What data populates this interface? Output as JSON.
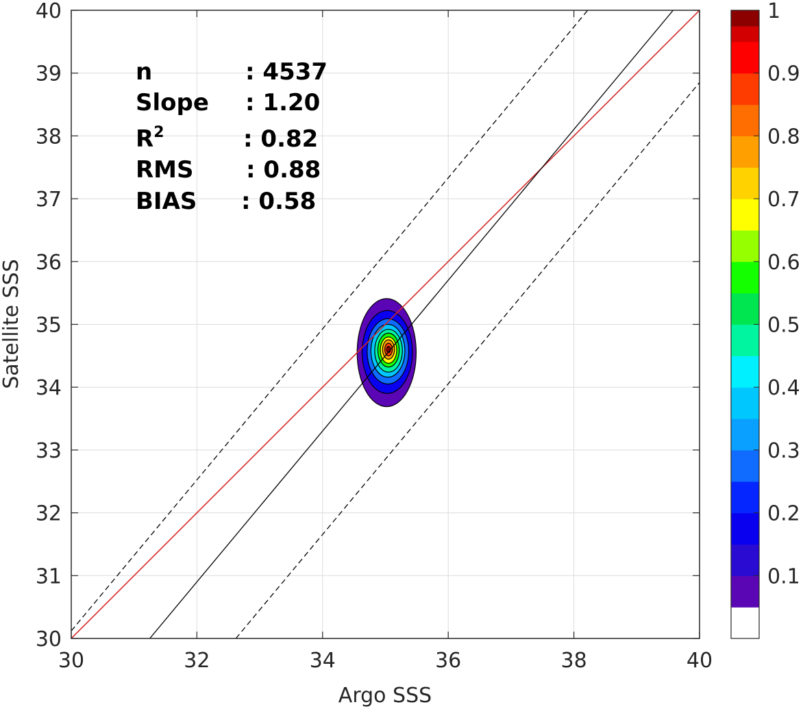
{
  "chart_data": {
    "type": "heatmap",
    "subtype": "density contour scatter comparison",
    "xlabel": "Argo SSS",
    "ylabel": "Satellite SSS",
    "xlim": [
      30,
      40
    ],
    "ylim": [
      30,
      40
    ],
    "x_ticks": [
      "30",
      "32",
      "34",
      "36",
      "38",
      "40"
    ],
    "y_ticks": [
      "30",
      "31",
      "32",
      "33",
      "34",
      "35",
      "36",
      "37",
      "38",
      "39",
      "40"
    ],
    "grid": true,
    "stats": [
      {
        "label": "n",
        "sep": ": ",
        "value": "4537"
      },
      {
        "label": "Slope",
        "sep": ": ",
        "value": "1.20"
      },
      {
        "label": "R",
        "sup": "2",
        "sep": ": ",
        "value": "0.82"
      },
      {
        "label": "RMS",
        "sep": ": ",
        "value": "0.88"
      },
      {
        "label": "BIAS",
        "sep": ": ",
        "value": "0.58"
      }
    ],
    "lines": [
      {
        "role": "one-to-one",
        "color": "#d62728",
        "style": "solid",
        "points": [
          [
            30,
            30
          ],
          [
            40,
            40
          ]
        ]
      },
      {
        "role": "regression",
        "color": "#000000",
        "style": "solid",
        "points": [
          [
            31.25,
            30
          ],
          [
            39.58,
            40
          ]
        ]
      },
      {
        "role": "upper-bound",
        "color": "#000000",
        "style": "dashed",
        "points": [
          [
            30,
            30.12
          ],
          [
            38.22,
            40
          ]
        ]
      },
      {
        "role": "lower-bound",
        "color": "#000000",
        "style": "dashed",
        "points": [
          [
            32.62,
            30
          ],
          [
            40,
            38.85
          ]
        ]
      }
    ],
    "density_peak": {
      "x": 35.05,
      "y": 34.6,
      "value": 1.0
    },
    "contours": [
      {
        "level": 0.05,
        "cx": 35.02,
        "cy": 34.55,
        "rx": 0.47,
        "ry": 0.86
      },
      {
        "level": 0.15,
        "cx": 35.03,
        "cy": 34.56,
        "rx": 0.4,
        "ry": 0.66
      },
      {
        "level": 0.25,
        "cx": 35.04,
        "cy": 34.57,
        "rx": 0.33,
        "ry": 0.52
      },
      {
        "level": 0.35,
        "cx": 35.04,
        "cy": 34.58,
        "rx": 0.27,
        "ry": 0.42
      },
      {
        "level": 0.45,
        "cx": 35.05,
        "cy": 34.58,
        "rx": 0.22,
        "ry": 0.34
      },
      {
        "level": 0.55,
        "cx": 35.05,
        "cy": 34.59,
        "rx": 0.17,
        "ry": 0.27
      },
      {
        "level": 0.65,
        "cx": 35.05,
        "cy": 34.59,
        "rx": 0.13,
        "ry": 0.21
      },
      {
        "level": 0.75,
        "cx": 35.05,
        "cy": 34.6,
        "rx": 0.095,
        "ry": 0.155
      },
      {
        "level": 0.85,
        "cx": 35.05,
        "cy": 34.6,
        "rx": 0.06,
        "ry": 0.1
      },
      {
        "level": 0.95,
        "cx": 35.05,
        "cy": 34.6,
        "rx": 0.03,
        "ry": 0.05
      }
    ],
    "colorbar": {
      "range": [
        0,
        1
      ],
      "tick_values": [
        0.1,
        0.2,
        0.3,
        0.4,
        0.5,
        0.6,
        0.7,
        0.8,
        0.9,
        1.0
      ],
      "tick_labels": [
        "0.1",
        "0.2",
        "0.3",
        "0.4",
        "0.5",
        "0.6",
        "0.7",
        "0.8",
        "0.9",
        "1"
      ],
      "bands": [
        {
          "from": 0.0,
          "to": 0.05,
          "color": "#ffffff"
        },
        {
          "from": 0.05,
          "to": 0.1,
          "color": "#5a06b4"
        },
        {
          "from": 0.1,
          "to": 0.15,
          "color": "#2a0bd2"
        },
        {
          "from": 0.15,
          "to": 0.2,
          "color": "#0a00f0"
        },
        {
          "from": 0.2,
          "to": 0.25,
          "color": "#0526ff"
        },
        {
          "from": 0.25,
          "to": 0.3,
          "color": "#0f6cff"
        },
        {
          "from": 0.3,
          "to": 0.35,
          "color": "#0aa0ff"
        },
        {
          "from": 0.35,
          "to": 0.4,
          "color": "#00c8ff"
        },
        {
          "from": 0.4,
          "to": 0.45,
          "color": "#00f0ff"
        },
        {
          "from": 0.45,
          "to": 0.5,
          "color": "#00f5a0"
        },
        {
          "from": 0.5,
          "to": 0.55,
          "color": "#00e650"
        },
        {
          "from": 0.55,
          "to": 0.6,
          "color": "#14ff00"
        },
        {
          "from": 0.6,
          "to": 0.65,
          "color": "#96ff00"
        },
        {
          "from": 0.65,
          "to": 0.7,
          "color": "#ffff00"
        },
        {
          "from": 0.7,
          "to": 0.75,
          "color": "#ffd200"
        },
        {
          "from": 0.75,
          "to": 0.8,
          "color": "#ffa000"
        },
        {
          "from": 0.8,
          "to": 0.85,
          "color": "#ff6e00"
        },
        {
          "from": 0.85,
          "to": 0.9,
          "color": "#ff3c00"
        },
        {
          "from": 0.9,
          "to": 0.95,
          "color": "#ff0000"
        },
        {
          "from": 0.95,
          "to": 0.975,
          "color": "#d20000"
        },
        {
          "from": 0.975,
          "to": 1.0,
          "color": "#8c0000"
        }
      ]
    }
  }
}
